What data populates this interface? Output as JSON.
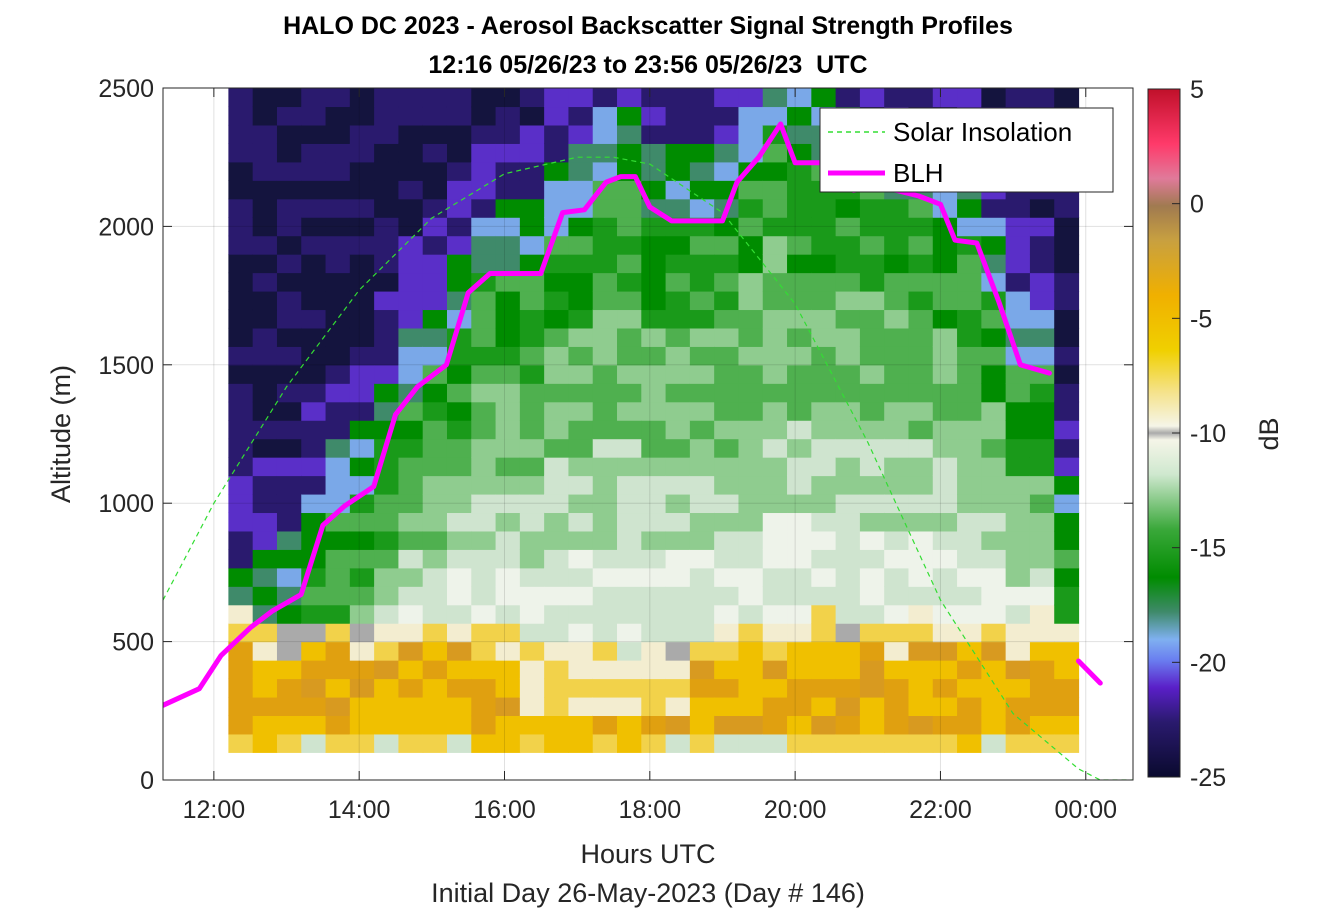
{
  "chart_data": {
    "type": "heatmap",
    "title": "HALO DC 2023 - Aerosol Backscatter Signal Strength Profiles",
    "subtitle": "12:16 05/26/23 to 23:56 05/26/23  UTC",
    "xlabel": "Hours UTC",
    "xlabel2": "Initial Day 26-May-2023 (Day # 146)",
    "ylabel": "Altitude (m)",
    "xlim_hours": [
      11.3,
      24.65
    ],
    "ylim": [
      0,
      2500
    ],
    "x_ticks": [
      12,
      14,
      16,
      18,
      20,
      22,
      24
    ],
    "x_tick_labels": [
      "12:00",
      "14:00",
      "16:00",
      "18:00",
      "20:00",
      "22:00",
      "00:00"
    ],
    "y_ticks": [
      0,
      500,
      1000,
      1500,
      2000,
      2500
    ],
    "y_tick_labels": [
      "0",
      "500",
      "1000",
      "1500",
      "2000",
      "2500"
    ],
    "colorbar": {
      "label": "dB",
      "range": [
        -25,
        5
      ],
      "ticks": [
        5,
        0,
        -5,
        -10,
        -15,
        -20,
        -25
      ],
      "tick_labels": [
        "5",
        "0",
        "-5",
        "-10",
        "-15",
        "-20",
        "-25"
      ]
    },
    "grid": true,
    "legend_position": "top-right",
    "heatmap_extent": {
      "x_hours": [
        12.2,
        23.9
      ],
      "altitude_m": [
        100,
        2500
      ]
    },
    "series": [
      {
        "name": "Solar Insolation",
        "style": "dashed",
        "color": "#33dd33",
        "x": [
          11.3,
          12.0,
          13.0,
          14.0,
          15.0,
          16.0,
          17.0,
          17.5,
          18.0,
          19.0,
          20.0,
          21.0,
          22.0,
          23.0,
          23.9,
          24.2,
          24.4,
          24.65
        ],
        "y": [
          650,
          1000,
          1420,
          1770,
          2030,
          2190,
          2250,
          2250,
          2225,
          2050,
          1720,
          1220,
          650,
          240,
          40,
          0,
          0,
          0
        ]
      },
      {
        "name": "BLH",
        "style": "solid",
        "color": "#ff00ff",
        "x": [
          11.3,
          11.8,
          12.1,
          12.5,
          12.8,
          13.2,
          13.5,
          13.8,
          14.2,
          14.5,
          14.8,
          15.2,
          15.5,
          15.8,
          16.1,
          16.5,
          16.8,
          17.1,
          17.4,
          17.6,
          17.8,
          18.0,
          18.3,
          18.6,
          19.0,
          19.2,
          19.5,
          19.8,
          20.0,
          20.3,
          20.6,
          20.8,
          21.1,
          21.4,
          21.7,
          22.0,
          22.2,
          22.5,
          22.8,
          23.1,
          23.5,
          23.9,
          24.2
        ],
        "y": [
          270,
          330,
          450,
          550,
          610,
          670,
          920,
          990,
          1060,
          1320,
          1420,
          1500,
          1760,
          1830,
          1830,
          1830,
          2050,
          2060,
          2160,
          2180,
          2180,
          2070,
          2020,
          2020,
          2020,
          2160,
          2250,
          2370,
          2230,
          2230,
          2230,
          2130,
          2140,
          2130,
          2110,
          2080,
          1950,
          1940,
          1730,
          1500,
          1470,
          430,
          350
        ]
      }
    ],
    "colors": {
      "insolation": "#33dd33",
      "blh": "#ff00ff",
      "low_aerosol": "#f0b000",
      "mixed_layer": "#008c00",
      "free_troposphere": "#2a1a6e"
    }
  }
}
